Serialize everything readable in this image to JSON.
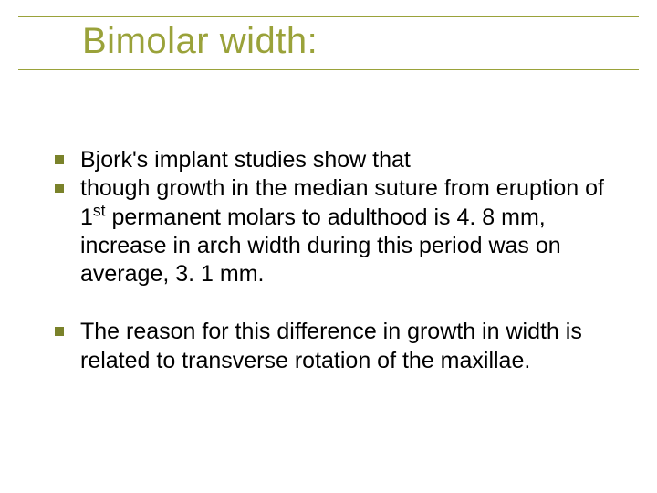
{
  "slide": {
    "title": "Bimolar width:",
    "title_color": "#9aa23a",
    "title_fontsize": 40,
    "rule_color": "#9aa23a",
    "body_color": "#000000",
    "body_fontsize": 25,
    "bullet_color": "#7a822a",
    "background_color": "#ffffff",
    "bullets": [
      {
        "html": "Bjork's implant studies show that"
      },
      {
        "html": " though growth in the median suture from eruption of 1<sup>st</sup> permanent molars to adulthood is 4. 8 mm, increase in arch width during this period was on average, 3. 1 mm."
      },
      {
        "spacer": true
      },
      {
        "html": "The reason for this difference in growth in width is related to transverse rotation of the maxillae."
      }
    ]
  }
}
